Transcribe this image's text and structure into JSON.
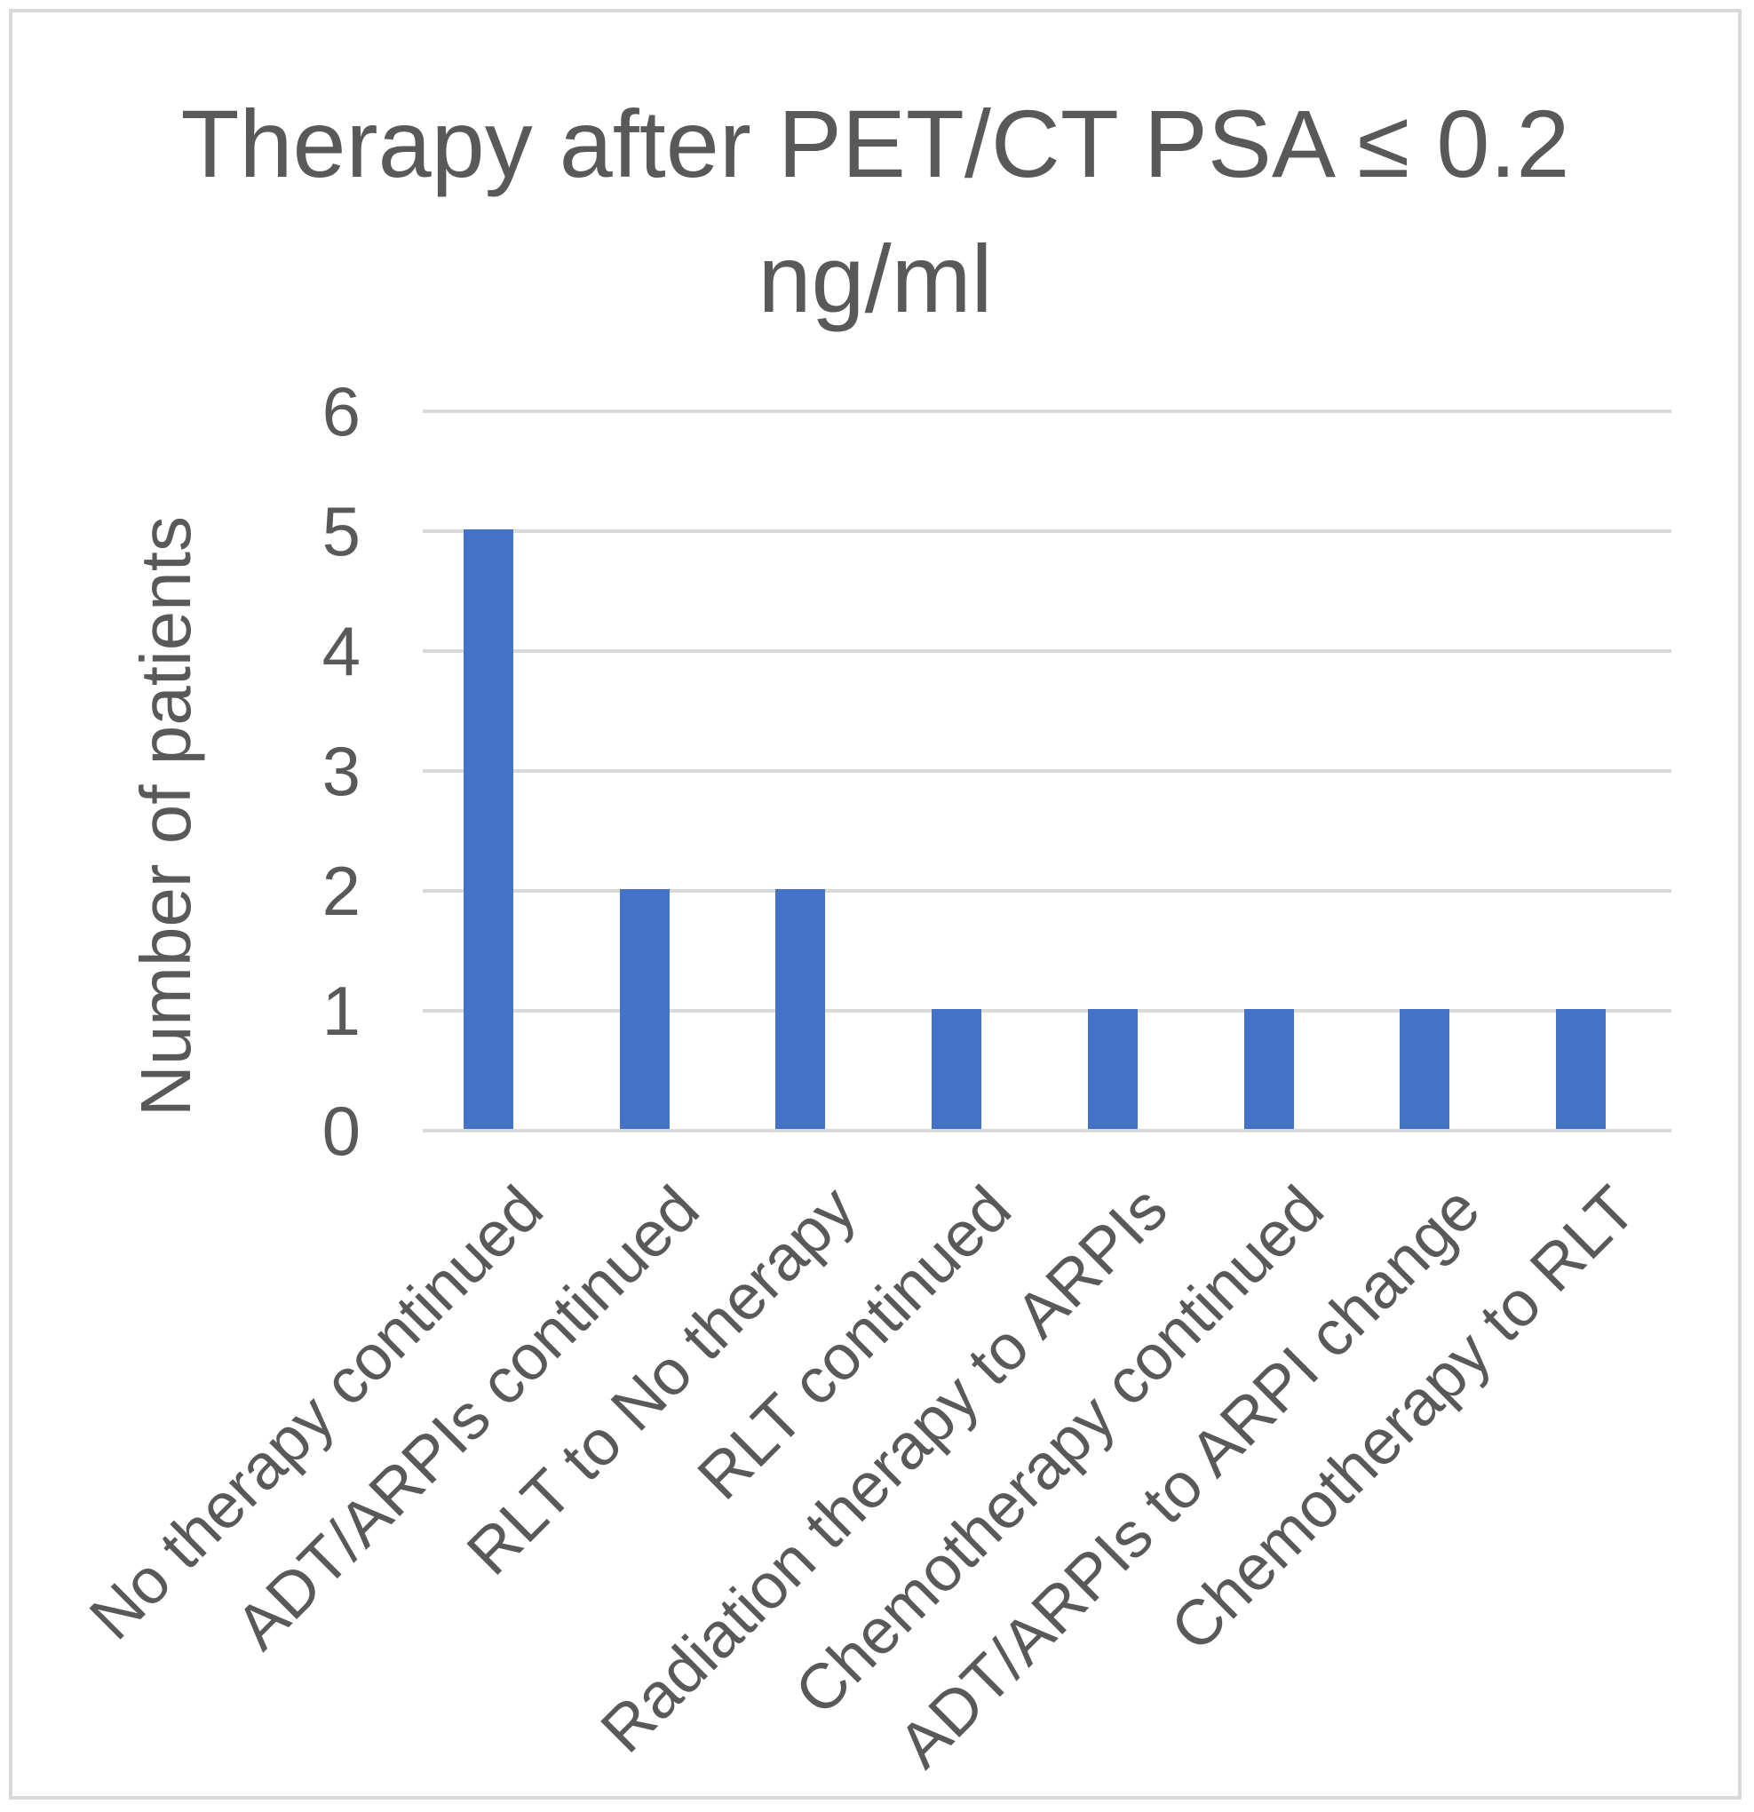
{
  "chart_data": {
    "type": "bar",
    "title": "Therapy after PET/CT PSA ≤ 0.2 ng/ml",
    "title_lines": [
      "Therapy after PET/CT PSA ≤ 0.2",
      "ng/ml"
    ],
    "categories": [
      "No therapy continued",
      "ADT/ARPIs continued",
      "RLT to No therapy",
      "RLT continued",
      "Radiation therapy to ARPIs",
      "Chemotherapy continued",
      "ADT/ARPIs to ARPI change",
      "Chemotherapy to RLT"
    ],
    "values": [
      5,
      2,
      2,
      1,
      1,
      1,
      1,
      1
    ],
    "xlabel": "",
    "ylabel": "Number of patients",
    "ylim": [
      0,
      6
    ],
    "yticks": [
      0,
      1,
      2,
      3,
      4,
      5,
      6
    ],
    "grid": "horizontal",
    "legend_position": "none",
    "bar_color": "#4472C4",
    "text_color": "#595959",
    "gridline_color": "#D9D9D9",
    "frame_color": "#D9D9D9"
  }
}
